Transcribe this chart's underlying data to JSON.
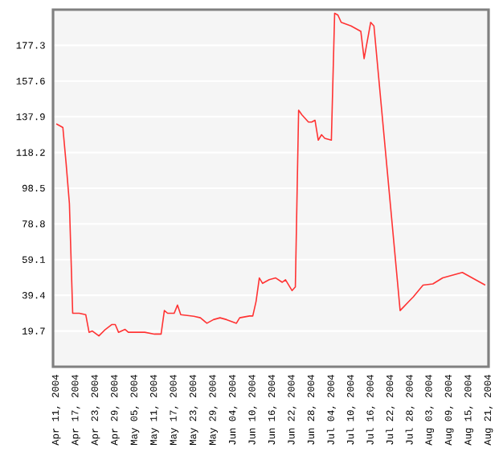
{
  "chart_data": {
    "type": "line",
    "grid": "y",
    "ylim": [
      0,
      197
    ],
    "yticks": [
      19.7,
      39.4,
      59.1,
      78.8,
      98.5,
      118.2,
      137.9,
      157.6,
      177.3
    ],
    "xlim": [
      "2004-04-10",
      "2004-08-21"
    ],
    "xticks": [
      {
        "value": "2004-04-11",
        "label": "Apr 11, 2004"
      },
      {
        "value": "2004-04-17",
        "label": "Apr 17, 2004"
      },
      {
        "value": "2004-04-23",
        "label": "Apr 23, 2004"
      },
      {
        "value": "2004-04-29",
        "label": "Apr 29, 2004"
      },
      {
        "value": "2004-05-05",
        "label": "May 05, 2004"
      },
      {
        "value": "2004-05-11",
        "label": "May 11, 2004"
      },
      {
        "value": "2004-05-17",
        "label": "May 17, 2004"
      },
      {
        "value": "2004-05-23",
        "label": "May 23, 2004"
      },
      {
        "value": "2004-05-29",
        "label": "May 29, 2004"
      },
      {
        "value": "2004-06-04",
        "label": "Jun 04, 2004"
      },
      {
        "value": "2004-06-10",
        "label": "Jun 10, 2004"
      },
      {
        "value": "2004-06-16",
        "label": "Jun 16, 2004"
      },
      {
        "value": "2004-06-22",
        "label": "Jun 22, 2004"
      },
      {
        "value": "2004-06-28",
        "label": "Jun 28, 2004"
      },
      {
        "value": "2004-07-04",
        "label": "Jul 04, 2004"
      },
      {
        "value": "2004-07-10",
        "label": "Jul 10, 2004"
      },
      {
        "value": "2004-07-16",
        "label": "Jul 16, 2004"
      },
      {
        "value": "2004-07-22",
        "label": "Jul 22, 2004"
      },
      {
        "value": "2004-07-28",
        "label": "Jul 28, 2004"
      },
      {
        "value": "2004-08-03",
        "label": "Aug 03, 2004"
      },
      {
        "value": "2004-08-09",
        "label": "Aug 09, 2004"
      },
      {
        "value": "2004-08-15",
        "label": "Aug 15, 2004"
      },
      {
        "value": "2004-08-21",
        "label": "Aug 21, 2004"
      }
    ],
    "x": [
      "2004-04-11",
      "2004-04-13",
      "2004-04-14",
      "2004-04-15",
      "2004-04-16",
      "2004-04-18",
      "2004-04-20",
      "2004-04-21",
      "2004-04-22",
      "2004-04-24",
      "2004-04-26",
      "2004-04-28",
      "2004-04-29",
      "2004-04-30",
      "2004-05-02",
      "2004-05-03",
      "2004-05-05",
      "2004-05-08",
      "2004-05-11",
      "2004-05-13",
      "2004-05-14",
      "2004-05-15",
      "2004-05-17",
      "2004-05-18",
      "2004-05-19",
      "2004-05-23",
      "2004-05-25",
      "2004-05-27",
      "2004-05-29",
      "2004-05-31",
      "2004-06-02",
      "2004-06-05",
      "2004-06-06",
      "2004-06-09",
      "2004-06-10",
      "2004-06-11",
      "2004-06-12",
      "2004-06-13",
      "2004-06-15",
      "2004-06-17",
      "2004-06-19",
      "2004-06-20",
      "2004-06-22",
      "2004-06-23",
      "2004-06-24",
      "2004-06-25",
      "2004-06-27",
      "2004-06-28",
      "2004-06-29",
      "2004-06-30",
      "2004-07-01",
      "2004-07-02",
      "2004-07-04",
      "2004-07-05",
      "2004-07-06",
      "2004-07-07",
      "2004-07-10",
      "2004-07-12",
      "2004-07-13",
      "2004-07-14",
      "2004-07-16",
      "2004-07-17",
      "2004-07-25",
      "2004-07-29",
      "2004-08-01",
      "2004-08-04",
      "2004-08-07",
      "2004-08-13",
      "2004-08-16",
      "2004-08-20"
    ],
    "series": [
      {
        "color": "#ff3333",
        "values": [
          134,
          132,
          112,
          90,
          29.5,
          29.5,
          28.7,
          19,
          19.7,
          17,
          20.6,
          23.3,
          23.3,
          19,
          20.6,
          19,
          19,
          19,
          18,
          18,
          31,
          29.5,
          29.5,
          34,
          28.7,
          27.8,
          27,
          24,
          26,
          27,
          26,
          24,
          27,
          28,
          28,
          36,
          49,
          46,
          48,
          49,
          46.6,
          48,
          42,
          44,
          141.5,
          139,
          135,
          135,
          136,
          125,
          128,
          126,
          125,
          195,
          194,
          190,
          188,
          186,
          185,
          170,
          190,
          188,
          31,
          38.5,
          45,
          45.7,
          49,
          52,
          49,
          45
        ]
      }
    ]
  }
}
